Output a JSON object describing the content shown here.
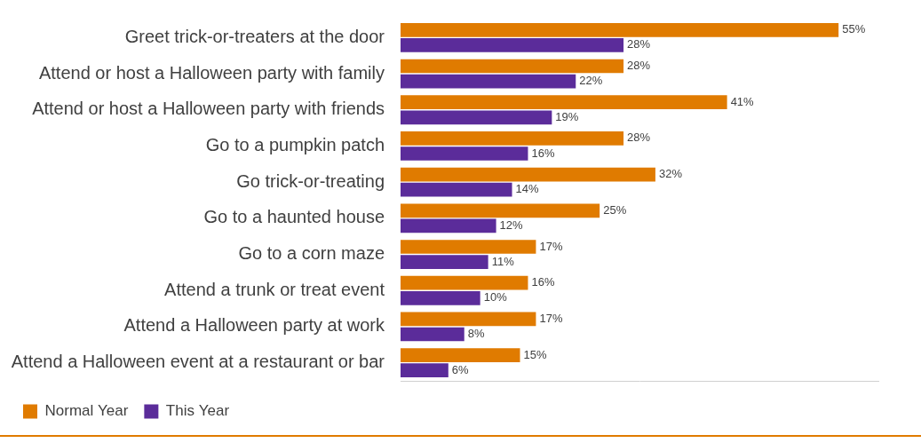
{
  "chart_data": {
    "type": "bar",
    "orientation": "horizontal",
    "categories": [
      "Greet trick-or-treaters at the door",
      "Attend or host a Halloween party with family",
      "Attend or host a Halloween party with friends",
      "Go to a pumpkin patch",
      "Go trick-or-treating",
      "Go to a haunted house",
      "Go to a corn maze",
      "Attend a trunk or treat event",
      "Attend a Halloween party at work",
      "Attend a Halloween event at a restaurant or bar"
    ],
    "series": [
      {
        "name": "Normal Year",
        "color": "#e07b00",
        "values": [
          55,
          28,
          41,
          28,
          32,
          25,
          17,
          16,
          17,
          15
        ],
        "value_labels": [
          "55%",
          "28%",
          "41%",
          "28%",
          "32%",
          "25%",
          "17%",
          "16%",
          "17%",
          "15%"
        ]
      },
      {
        "name": "This Year",
        "color": "#5b2c9a",
        "values": [
          28,
          22,
          19,
          16,
          14,
          12,
          11,
          10,
          8,
          6
        ],
        "value_labels": [
          "28%",
          "22%",
          "19%",
          "16%",
          "14%",
          "12%",
          "11%",
          "10%",
          "8%",
          "6%"
        ]
      }
    ],
    "xlim": [
      0,
      60
    ],
    "grid": false,
    "legend": "bottom left",
    "data_labels": true,
    "tick_labels": "y"
  }
}
